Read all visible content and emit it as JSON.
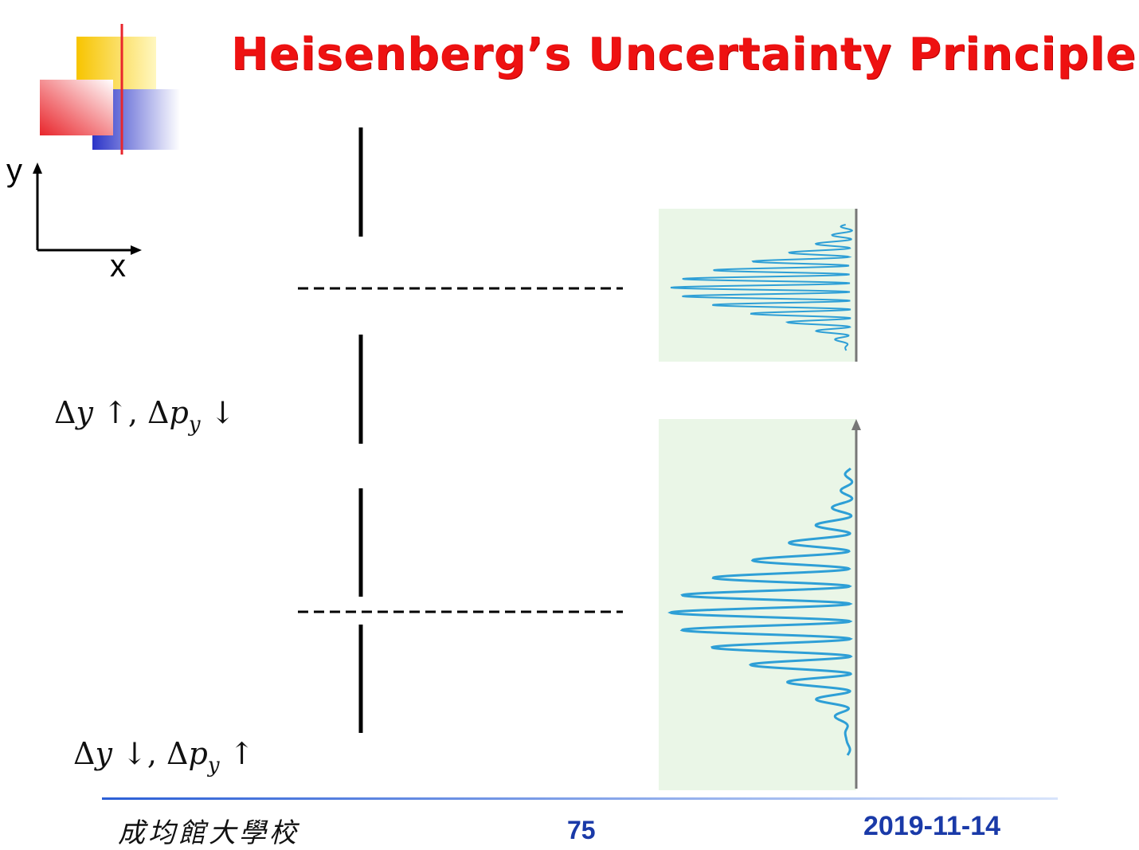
{
  "slide": {
    "title": "Heisenberg’s Uncertainty Principle",
    "axes": {
      "y_label": "y",
      "x_label": "x"
    },
    "case_wide": {
      "delta_y": "Δ",
      "y_sym": "y",
      "y_arrow": "↑,",
      "delta_p": "Δ",
      "p_sym": "p",
      "p_sub": "y",
      "p_arrow": "↓"
    },
    "case_narrow": {
      "delta_y": "Δ",
      "y_sym": "y",
      "y_arrow": "↓,",
      "delta_p": "Δ",
      "p_sym": "p",
      "p_sub": "y",
      "p_arrow": "↑"
    },
    "footer": {
      "school": "成均館大學校",
      "page": "75",
      "date": "2019-11-14"
    }
  },
  "colors": {
    "title": "#ee1111",
    "pattern_bg": "#eaf6e7",
    "pattern_line": "#2e9fd6",
    "footer_text": "#1a3aa8",
    "logo_yellow": "#f7c400",
    "logo_red": "#e8262c",
    "logo_blue": "#2b34c8"
  }
}
